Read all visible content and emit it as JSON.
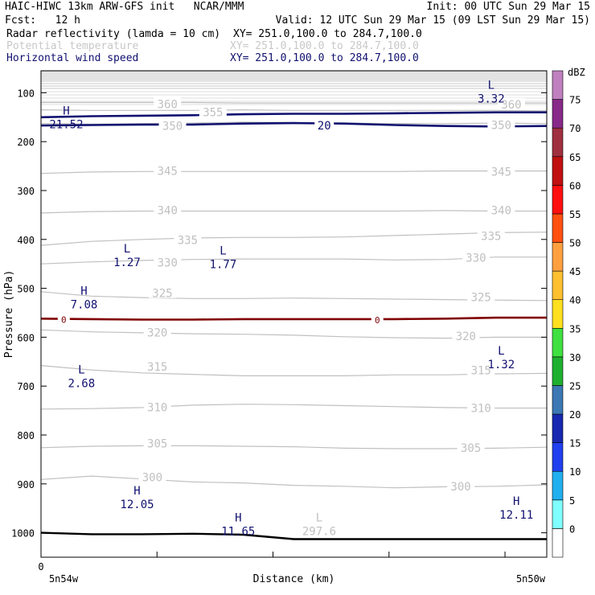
{
  "header": {
    "line1_left": "HAIC-HIWC 13km ARW-GFS init   NCAR/MMM",
    "line1_right": "Init: 00 UTC Sun 29 Mar 15",
    "line2_left": "Fcst:   12 h",
    "line2_right": "Valid: 12 UTC Sun 29 Mar 15 (09 LST Sun 29 Mar 15)",
    "fields": [
      {
        "name": "Radar reflectivity (lamda = 10 cm)",
        "xy": "XY= 251.0,100.0 to 284.7,100.0",
        "color": "#000000"
      },
      {
        "name": "Potential temperature",
        "xy": "XY= 251.0,100.0 to 284.7,100.0",
        "color": "#c8c8c8"
      },
      {
        "name": "Horizontal wind speed",
        "xy": "XY= 251.0,100.0 to 284.7,100.0",
        "color": "#101070"
      }
    ]
  },
  "colorbar": {
    "unit": "dBZ",
    "levels": [
      "0",
      "5",
      "10",
      "15",
      "20",
      "25",
      "30",
      "35",
      "40",
      "45",
      "50",
      "55",
      "60",
      "65",
      "70",
      "75"
    ],
    "colors": [
      "#ffffff",
      "#80ffff",
      "#20b0f0",
      "#2040f0",
      "#1828b0",
      "#3c78b4",
      "#20b030",
      "#40e040",
      "#ffe020",
      "#ffc030",
      "#ffa040",
      "#ff5010",
      "#ff1010",
      "#c01010",
      "#a03040",
      "#882888",
      "#c080c0"
    ]
  },
  "chart_data": {
    "type": "cross-section",
    "xlabel": "Distance (km)",
    "ylabel": "Pressure (hPa)",
    "xticks": [
      "0"
    ],
    "x_endpoint_labels": [
      "5n54w",
      "5n50w"
    ],
    "yticks": [
      "100",
      "200",
      "300",
      "400",
      "500",
      "600",
      "700",
      "800",
      "900",
      "1000"
    ],
    "ylim": [
      55,
      1050
    ],
    "theta_contours": [
      {
        "value": 300,
        "p": [
          891,
          884,
          890,
          896,
          898,
          903,
          905,
          908,
          906,
          905,
          902
        ]
      },
      {
        "value": 305,
        "p": [
          826,
          823,
          822,
          822,
          823,
          824,
          827,
          828,
          828,
          827,
          825
        ]
      },
      {
        "value": 310,
        "p": [
          747,
          746,
          744,
          739,
          737,
          738,
          740,
          742,
          744,
          745,
          745
        ]
      },
      {
        "value": 315,
        "p": [
          658,
          667,
          673,
          676,
          679,
          679,
          679,
          677,
          677,
          675,
          674
        ]
      },
      {
        "value": 320,
        "p": [
          585,
          589,
          591,
          593,
          594,
          596,
          599,
          601,
          602,
          600,
          600
        ]
      },
      {
        "value": 325,
        "p": [
          507,
          516,
          519,
          521,
          521,
          520,
          521,
          522,
          523,
          524,
          525
        ]
      },
      {
        "value": 330,
        "p": [
          450,
          446,
          443,
          441,
          440,
          440,
          440,
          442,
          441,
          436,
          436
        ]
      },
      {
        "value": 335,
        "p": [
          412,
          404,
          400,
          397,
          396,
          396,
          395,
          392,
          389,
          386,
          385
        ]
      },
      {
        "value": 340,
        "p": [
          346,
          343,
          342,
          342,
          342,
          342,
          342,
          342,
          341,
          342,
          342
        ]
      },
      {
        "value": 345,
        "p": [
          265,
          262,
          261,
          261,
          261,
          261,
          261,
          261,
          260,
          260,
          260
        ]
      },
      {
        "value": 350,
        "p": [
          163,
          164,
          163,
          162,
          160,
          161,
          162,
          163,
          163,
          162,
          163
        ]
      },
      {
        "value": 355,
        "p": [
          135,
          136,
          136,
          136,
          135,
          136,
          136,
          136,
          136,
          136,
          137
        ]
      },
      {
        "value": 360,
        "p": [
          120,
          120,
          120,
          120,
          121,
          121,
          121,
          121,
          121,
          121,
          121
        ]
      }
    ],
    "theta_labels": [
      {
        "text": "360",
        "x": 0.25,
        "p": 123
      },
      {
        "text": "355",
        "x": 0.34,
        "p": 140
      },
      {
        "text": "360",
        "x": 0.93,
        "p": 124
      },
      {
        "text": "350",
        "x": 0.26,
        "p": 168
      },
      {
        "text": "350",
        "x": 0.91,
        "p": 166
      },
      {
        "text": "345",
        "x": 0.25,
        "p": 260
      },
      {
        "text": "345",
        "x": 0.91,
        "p": 261
      },
      {
        "text": "340",
        "x": 0.25,
        "p": 340
      },
      {
        "text": "340",
        "x": 0.91,
        "p": 340
      },
      {
        "text": "335",
        "x": 0.29,
        "p": 401
      },
      {
        "text": "335",
        "x": 0.89,
        "p": 393
      },
      {
        "text": "330",
        "x": 0.25,
        "p": 447
      },
      {
        "text": "330",
        "x": 0.86,
        "p": 437
      },
      {
        "text": "325",
        "x": 0.24,
        "p": 510
      },
      {
        "text": "325",
        "x": 0.87,
        "p": 518
      },
      {
        "text": "320",
        "x": 0.23,
        "p": 590
      },
      {
        "text": "320",
        "x": 0.84,
        "p": 598
      },
      {
        "text": "315",
        "x": 0.23,
        "p": 660
      },
      {
        "text": "315",
        "x": 0.87,
        "p": 668
      },
      {
        "text": "310",
        "x": 0.23,
        "p": 743
      },
      {
        "text": "310",
        "x": 0.87,
        "p": 745
      },
      {
        "text": "305",
        "x": 0.23,
        "p": 817
      },
      {
        "text": "305",
        "x": 0.85,
        "p": 826
      },
      {
        "text": "300",
        "x": 0.22,
        "p": 886
      },
      {
        "text": "300",
        "x": 0.83,
        "p": 905
      }
    ],
    "wind_contours": [
      {
        "value": 20,
        "p": [
          150,
          148,
          147,
          146,
          144,
          143,
          143,
          142,
          141,
          140,
          140
        ]
      },
      {
        "value": 20,
        "p": [
          167,
          166,
          165,
          165,
          163,
          162,
          163,
          166,
          168,
          169,
          168
        ]
      },
      {
        "value": 0,
        "p": [
          562,
          563,
          564,
          564,
          563,
          563,
          563,
          563,
          562,
          560,
          560
        ]
      }
    ],
    "wind_labels": [
      {
        "text": "20",
        "x": 0.56,
        "p": 167
      },
      {
        "text": "0",
        "x": 0.045,
        "p": 562
      },
      {
        "text": "0",
        "x": 0.665,
        "p": 563
      }
    ],
    "terrain_p": [
      1000,
      1003,
      1003,
      1002,
      1004,
      1013,
      1013,
      1013,
      1013,
      1013,
      1013
    ],
    "extrema": [
      {
        "type": "L",
        "value": "3.32",
        "x": 0.89,
        "p": 105,
        "field": "wind"
      },
      {
        "type": "H",
        "value": "21.52",
        "x": 0.05,
        "p": 158,
        "field": "wind"
      },
      {
        "type": "L",
        "value": "1.27",
        "x": 0.17,
        "p": 440,
        "field": "wind"
      },
      {
        "type": "L",
        "value": "1.77",
        "x": 0.36,
        "p": 444,
        "field": "wind"
      },
      {
        "type": "H",
        "value": "7.08",
        "x": 0.085,
        "p": 526,
        "field": "wind"
      },
      {
        "type": "L",
        "value": "1.32",
        "x": 0.91,
        "p": 649,
        "field": "wind"
      },
      {
        "type": "L",
        "value": "2.68",
        "x": 0.08,
        "p": 687,
        "field": "wind"
      },
      {
        "type": "H",
        "value": "12.05",
        "x": 0.19,
        "p": 935,
        "field": "wind"
      },
      {
        "type": "H",
        "value": "12.11",
        "x": 0.94,
        "p": 956,
        "field": "wind"
      },
      {
        "type": "H",
        "value": "11.65",
        "x": 0.39,
        "p": 990,
        "field": "wind"
      },
      {
        "type": "L",
        "value": "297.6",
        "x": 0.55,
        "p": 990,
        "field": "theta"
      }
    ],
    "colors": {
      "theta": "#c0c0c0",
      "wind": "#101070",
      "zero_wind": "#800000",
      "terrain": "#000000"
    }
  }
}
